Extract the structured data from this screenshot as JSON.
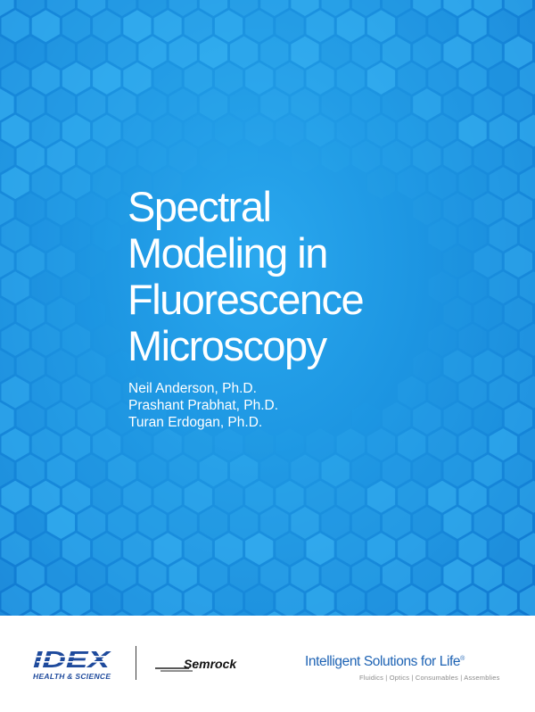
{
  "cover": {
    "title_lines": [
      "Spectral",
      "Modeling in",
      "Fluorescence",
      "Microscopy"
    ],
    "authors": [
      "Neil Anderson, Ph.D.",
      "Prashant Prabhat, Ph.D.",
      "Turan Erdogan, Ph.D."
    ]
  },
  "footer": {
    "idex_logo_text": "IDEX",
    "idex_subtitle": "HEALTH & SCIENCE",
    "semrock_logo_text": "Semrock",
    "tagline": "Intelligent Solutions for Life",
    "tagline_mark": "®",
    "product_lines": "Fluidics | Optics | Consumables | Assemblies"
  },
  "colors": {
    "cover_blue": "#1d96e2",
    "hex_light": "#3db8f5",
    "idex_blue": "#1e4a9c",
    "tagline_blue": "#1e63b4"
  },
  "icons": {
    "pattern": "hexagon-pattern",
    "idex_mark": "idex-logo",
    "semrock_mark": "semrock-logo"
  }
}
